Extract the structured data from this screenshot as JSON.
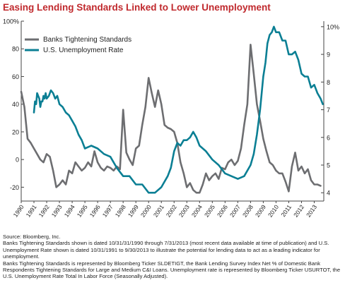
{
  "title": "Easing Lending Standards Linked to Lower Unemployment",
  "footnotes": [
    "Source: Bloomberg, Inc.",
    "Banks Tightening Standards shown is dated 10/31/31/1990 through 7/31/2013 (most recent data available at time of publication) and U.S. Unemployment Rate shown is dated 10/31/1991 to 9/30/2013 to illustrate the potential for lending data to act as a leading indicator for unemployment.",
    "Banks Tightening Standards is represented by Bloomberg Ticker SLDETIGT, the Bank Lending Survey Index Net % of Domestic Bank Respondents Tightening Standards for Large and Medium C&I Loans. Unemployment rate is represented by Bloomberg Ticker USURTOT, the U.S. Unemployment Rate Total In Labor Force (Seasonally Adjusted)."
  ],
  "colors": {
    "banks": "#6d6e71",
    "unemployment": "#0b7f94",
    "title": "#c0292d"
  },
  "chart_data": {
    "type": "line",
    "title": "Easing Lending Standards Linked to Lower Unemployment",
    "grid": false,
    "legend_position": "top-left",
    "x_ticks": [
      "1990",
      "1991",
      "1992",
      "1993",
      "1994",
      "1995",
      "1996",
      "1997",
      "1998",
      "1999",
      "2000",
      "2001",
      "2002",
      "2003",
      "2004",
      "2005",
      "2006",
      "2007",
      "2008",
      "2009",
      "2010",
      "2011",
      "2012",
      "2013"
    ],
    "left_axis": {
      "ticks": [
        "100%",
        "80",
        "60",
        "40",
        "20",
        "0",
        "-20"
      ],
      "range": [
        -30,
        100
      ]
    },
    "right_axis": {
      "ticks": [
        "10%",
        "9",
        "8",
        "7",
        "6",
        "5",
        "4"
      ],
      "range": [
        3.7,
        10.2
      ]
    },
    "series": [
      {
        "name": "Banks Tightening Standards",
        "axis": "left",
        "x": [
          1990.0,
          1990.25,
          1990.5,
          1990.75,
          1991.0,
          1991.25,
          1991.5,
          1991.75,
          1992.0,
          1992.25,
          1992.5,
          1992.75,
          1993.0,
          1993.25,
          1993.5,
          1993.75,
          1994.0,
          1994.25,
          1994.5,
          1994.75,
          1995.0,
          1995.25,
          1995.5,
          1995.75,
          1996.0,
          1996.25,
          1996.5,
          1996.75,
          1997.0,
          1997.25,
          1997.5,
          1997.75,
          1998.0,
          1998.25,
          1998.5,
          1998.75,
          1999.0,
          1999.25,
          1999.5,
          1999.75,
          2000.0,
          2000.25,
          2000.5,
          2000.75,
          2001.0,
          2001.25,
          2001.5,
          2001.75,
          2002.0,
          2002.25,
          2002.5,
          2002.75,
          2003.0,
          2003.25,
          2003.5,
          2003.75,
          2004.0,
          2004.25,
          2004.5,
          2004.75,
          2005.0,
          2005.25,
          2005.5,
          2005.75,
          2006.0,
          2006.25,
          2006.5,
          2006.75,
          2007.0,
          2007.25,
          2007.5,
          2007.75,
          2008.0,
          2008.25,
          2008.5,
          2008.75,
          2009.0,
          2009.25,
          2009.5,
          2009.75,
          2010.0,
          2010.25,
          2010.5,
          2010.75,
          2011.0,
          2011.25,
          2011.5,
          2011.75,
          2012.0,
          2012.25,
          2012.5,
          2012.75,
          2013.0,
          2013.25,
          2013.5
        ],
        "values": [
          49,
          38,
          15,
          12,
          8,
          4,
          0,
          -2,
          4,
          2,
          -8,
          -20,
          -18,
          -15,
          -18,
          -8,
          -10,
          -2,
          -5,
          -8,
          -6,
          -2,
          -5,
          6,
          -2,
          -6,
          -8,
          -5,
          -6,
          -8,
          -5,
          -7,
          36,
          5,
          0,
          -4,
          8,
          10,
          25,
          38,
          59,
          48,
          38,
          50,
          40,
          25,
          23,
          22,
          20,
          12,
          -2,
          -10,
          -20,
          -17,
          -22,
          -24,
          -24,
          -18,
          -10,
          -15,
          -12,
          -10,
          -14,
          -6,
          -7,
          -2,
          0,
          -4,
          -1,
          8,
          25,
          40,
          83,
          62,
          40,
          28,
          15,
          6,
          -2,
          -4,
          -8,
          -10,
          -10,
          -16,
          -23,
          -5,
          5,
          -8,
          -5,
          -10,
          -7,
          -15,
          -18,
          -18,
          -19
        ]
      },
      {
        "name": "U.S. Unemployment Rate",
        "axis": "right",
        "x": [
          1991.0,
          1991.08,
          1991.17,
          1991.25,
          1991.33,
          1991.42,
          1991.5,
          1991.58,
          1991.67,
          1991.75,
          1991.83,
          1991.92,
          1992.0,
          1992.17,
          1992.33,
          1992.5,
          1992.67,
          1992.83,
          1993.0,
          1993.25,
          1993.5,
          1993.75,
          1994.0,
          1994.25,
          1994.5,
          1994.75,
          1995.0,
          1995.5,
          1996.0,
          1996.5,
          1997.0,
          1997.5,
          1998.0,
          1998.5,
          1999.0,
          1999.5,
          2000.0,
          2000.5,
          2001.0,
          2001.25,
          2001.5,
          2001.75,
          2002.0,
          2002.25,
          2002.5,
          2002.75,
          2003.0,
          2003.25,
          2003.5,
          2003.75,
          2004.0,
          2004.5,
          2005.0,
          2005.5,
          2006.0,
          2006.5,
          2007.0,
          2007.5,
          2008.0,
          2008.25,
          2008.5,
          2008.75,
          2009.0,
          2009.17,
          2009.33,
          2009.5,
          2009.67,
          2009.83,
          2010.0,
          2010.25,
          2010.5,
          2010.75,
          2011.0,
          2011.25,
          2011.5,
          2011.75,
          2012.0,
          2012.25,
          2012.5,
          2012.75,
          2013.0,
          2013.25,
          2013.5,
          2013.67
        ],
        "values": [
          6.9,
          7.3,
          7.2,
          7.6,
          7.5,
          7.4,
          7.1,
          7.3,
          7.3,
          7.5,
          7.4,
          7.6,
          7.4,
          7.5,
          7.7,
          7.6,
          7.4,
          7.5,
          7.2,
          7.1,
          6.9,
          6.8,
          6.6,
          6.4,
          6.1,
          5.9,
          5.6,
          5.7,
          5.6,
          5.4,
          5.3,
          4.9,
          4.6,
          4.6,
          4.3,
          4.3,
          4.0,
          4.0,
          4.2,
          4.4,
          4.6,
          4.9,
          5.5,
          5.8,
          5.7,
          5.9,
          5.9,
          6.0,
          6.2,
          6.0,
          5.7,
          5.5,
          5.2,
          5.0,
          4.7,
          4.6,
          4.5,
          4.6,
          5.0,
          5.4,
          6.1,
          7.0,
          8.2,
          8.7,
          9.4,
          9.7,
          9.8,
          10.0,
          9.8,
          9.8,
          9.5,
          9.5,
          9.0,
          9.0,
          9.1,
          8.8,
          8.3,
          8.2,
          8.2,
          7.8,
          7.9,
          7.6,
          7.4,
          7.2
        ]
      }
    ]
  }
}
